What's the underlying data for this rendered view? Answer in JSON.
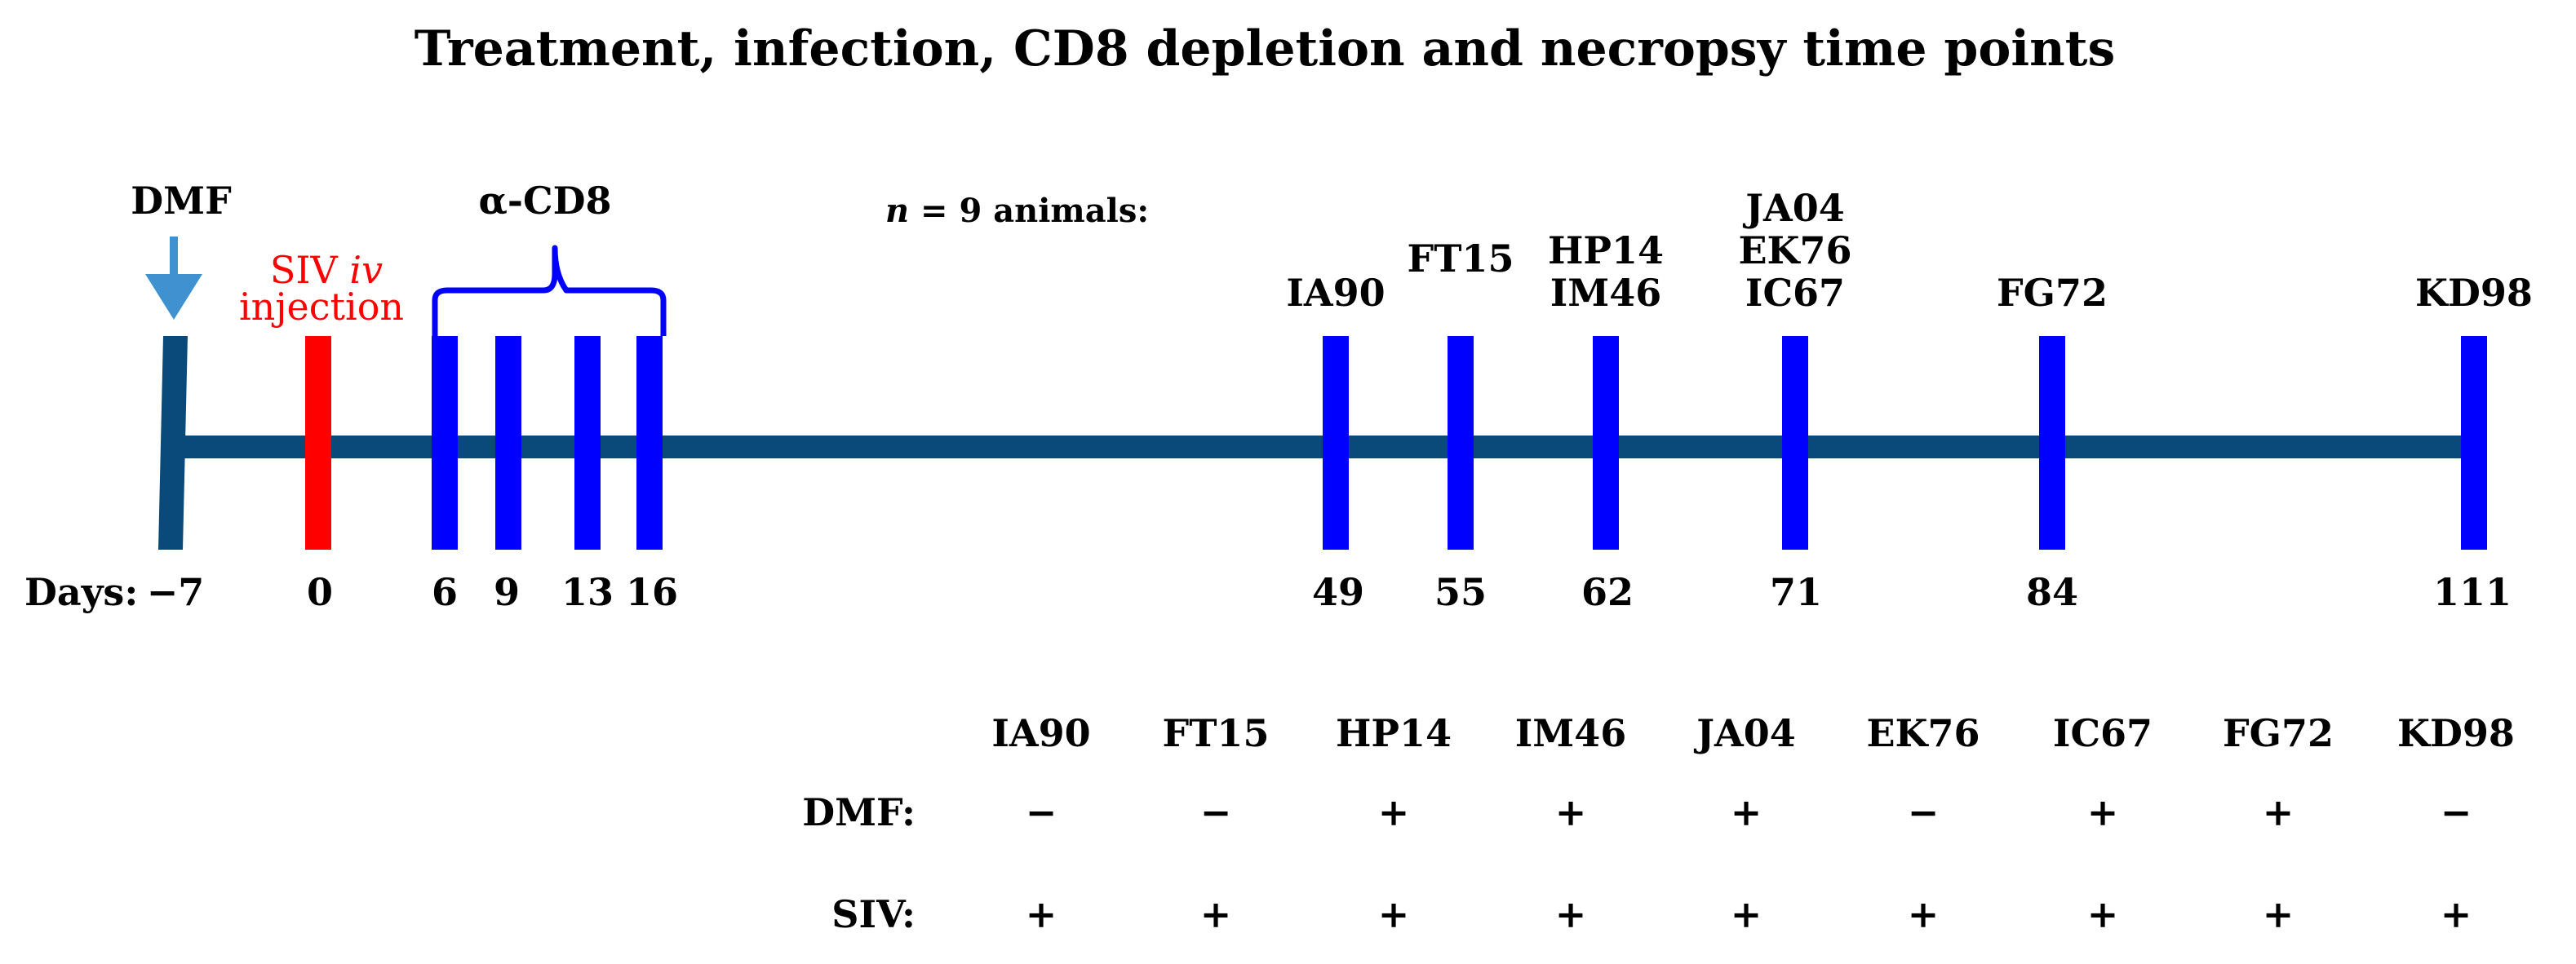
{
  "title": "Treatment, infection, CD8 depletion and necropsy time points",
  "colors": {
    "timeline": "#0a4a7a",
    "marker": "#0000ff",
    "siv": "#ff0000",
    "dmf_arrow": "#3f92cf",
    "text": "#000000"
  },
  "dmf_label": "DMF",
  "siv_label": {
    "prefix": "SIV ",
    "italic": "iv",
    "line2": "injection"
  },
  "acd8_label": "α-CD8",
  "animals_label": {
    "n": "n",
    "rest": " = 9 animals:"
  },
  "days_label": "Days:",
  "timeline_ticks": [
    {
      "day": "−7",
      "animals": []
    },
    {
      "day": "0",
      "animals": []
    },
    {
      "day": "6",
      "animals": []
    },
    {
      "day": "9",
      "animals": []
    },
    {
      "day": "13",
      "animals": []
    },
    {
      "day": "16",
      "animals": []
    },
    {
      "day": "49",
      "animals": [
        "IA90"
      ]
    },
    {
      "day": "55",
      "animals": [
        "FT15"
      ]
    },
    {
      "day": "62",
      "animals": [
        "HP14",
        "IM46"
      ]
    },
    {
      "day": "71",
      "animals": [
        "JA04",
        "EK76",
        "IC67"
      ]
    },
    {
      "day": "84",
      "animals": [
        "FG72"
      ]
    },
    {
      "day": "111",
      "animals": [
        "KD98"
      ]
    }
  ],
  "table": {
    "columns": [
      "IA90",
      "FT15",
      "HP14",
      "IM46",
      "JA04",
      "EK76",
      "IC67",
      "FG72",
      "KD98"
    ],
    "rows": [
      {
        "label": "DMF:",
        "values": [
          "−",
          "−",
          "+",
          "+",
          "+",
          "−",
          "+",
          "+",
          "−"
        ]
      },
      {
        "label": "SIV:",
        "values": [
          "+",
          "+",
          "+",
          "+",
          "+",
          "+",
          "+",
          "+",
          "+"
        ]
      }
    ]
  }
}
